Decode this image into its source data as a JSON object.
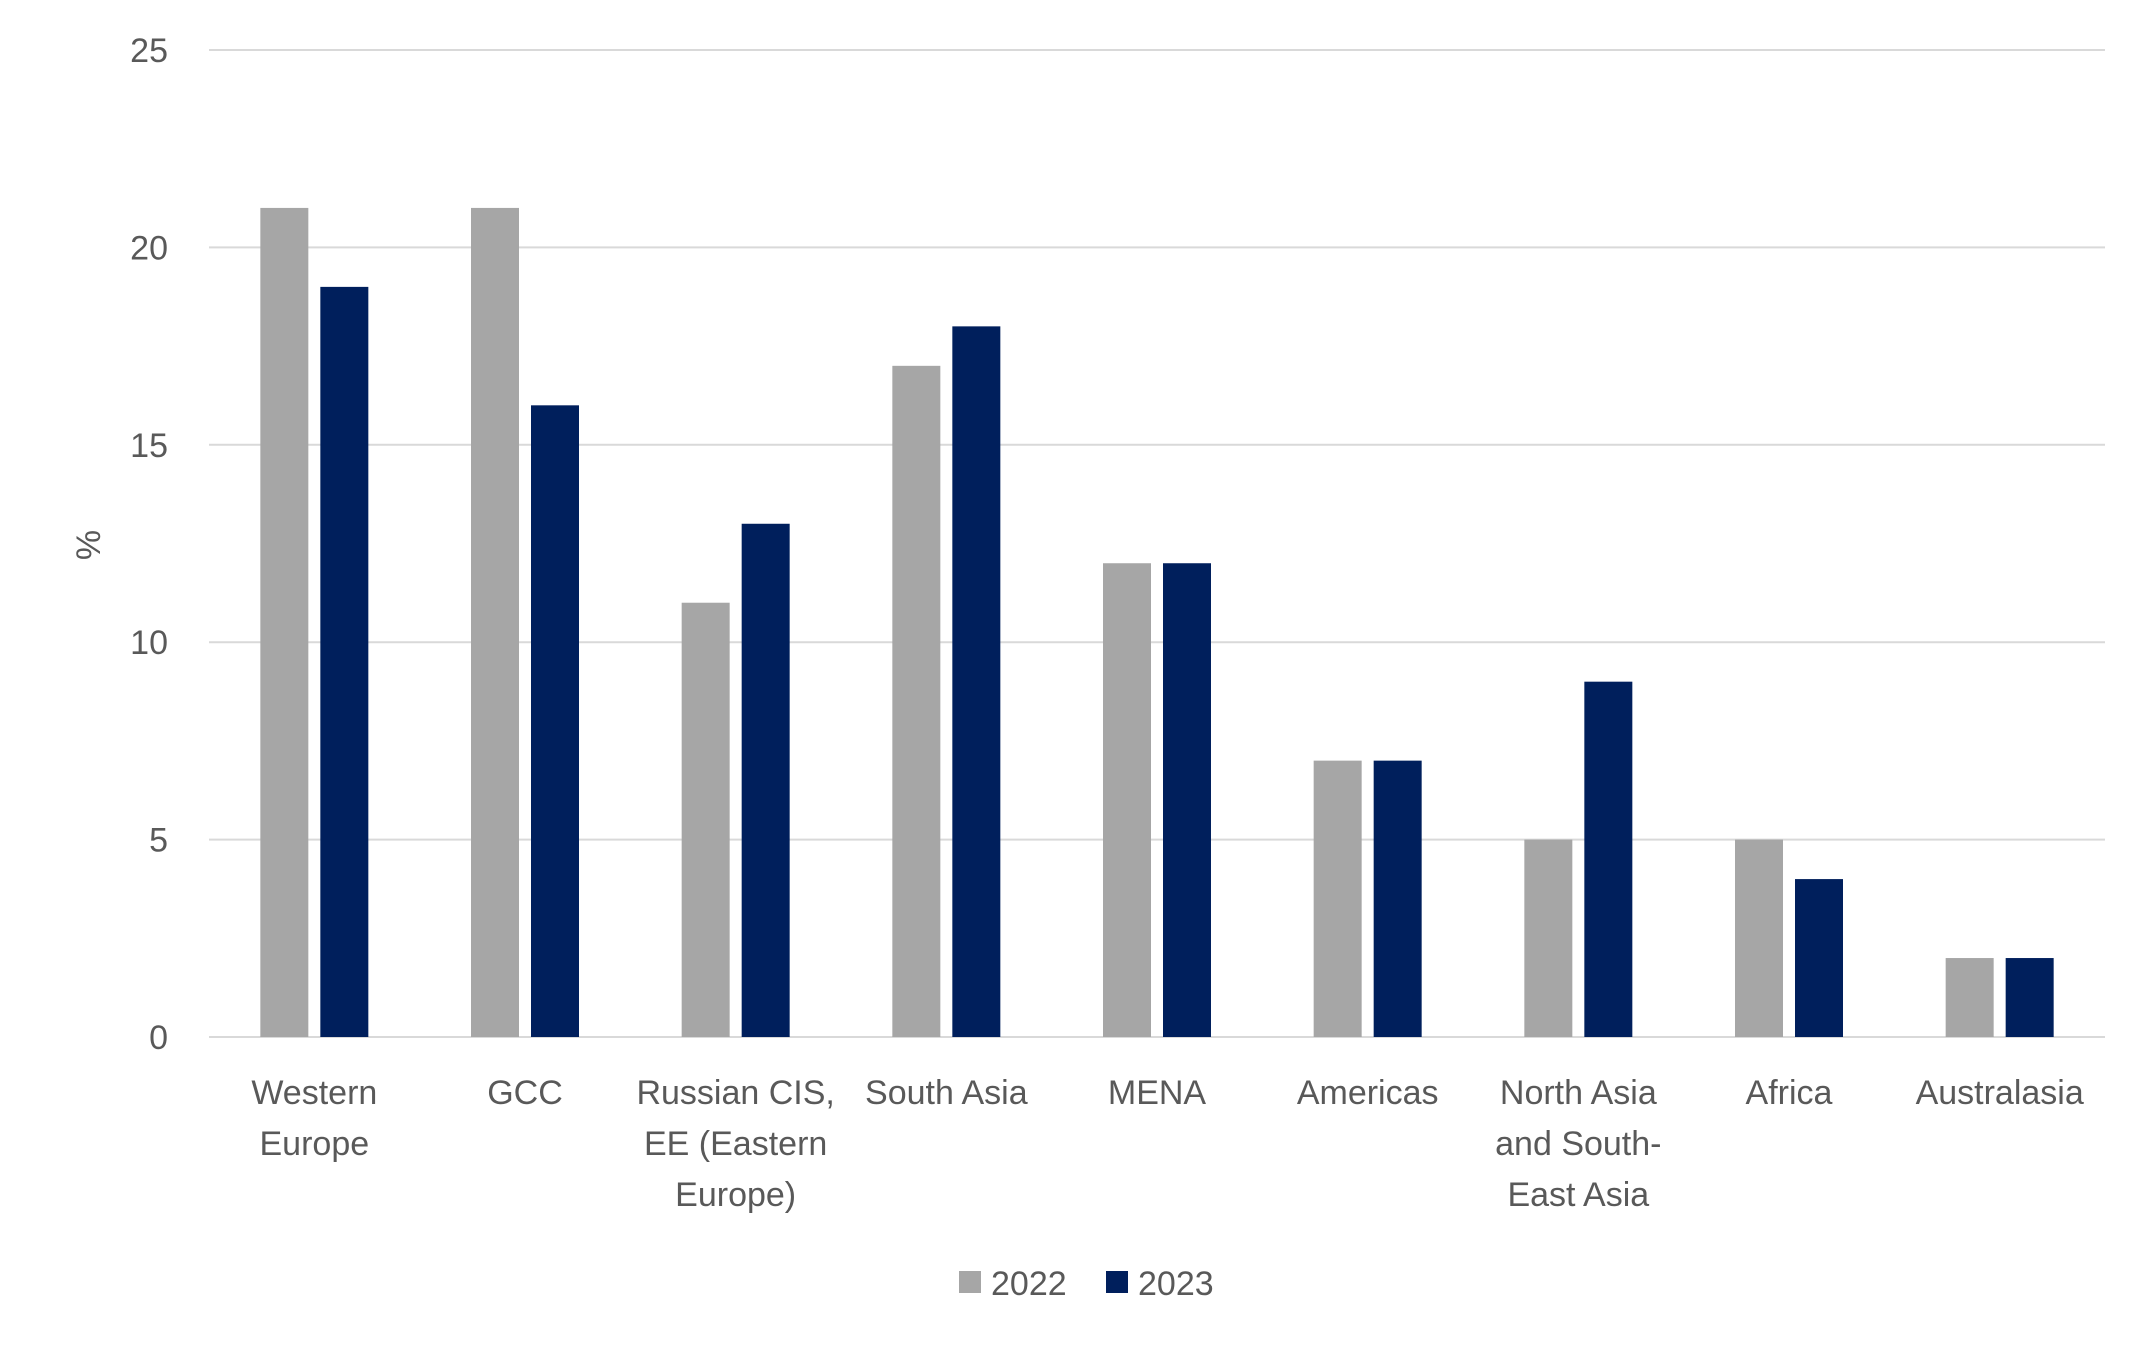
{
  "chart_data": {
    "type": "bar",
    "title": "",
    "xlabel": "",
    "ylabel": "%",
    "ylim": [
      0,
      25
    ],
    "yticks": [
      0,
      5,
      10,
      15,
      20,
      25
    ],
    "grid": true,
    "legend_position": "bottom",
    "categories": [
      [
        "Western",
        "Europe"
      ],
      [
        "GCC"
      ],
      [
        "Russian CIS,",
        "EE (Eastern",
        "Europe)"
      ],
      [
        "South Asia"
      ],
      [
        "MENA"
      ],
      [
        "Americas"
      ],
      [
        "North Asia",
        "and South-",
        "East Asia"
      ],
      [
        "Africa"
      ],
      [
        "Australasia"
      ]
    ],
    "series": [
      {
        "name": "2022",
        "color": "#a6a6a6",
        "values": [
          21,
          21,
          11,
          17,
          12,
          7,
          5,
          5,
          2
        ]
      },
      {
        "name": "2023",
        "color": "#001f5c",
        "values": [
          19,
          16,
          13,
          18,
          12,
          7,
          9,
          4,
          2
        ]
      }
    ]
  }
}
